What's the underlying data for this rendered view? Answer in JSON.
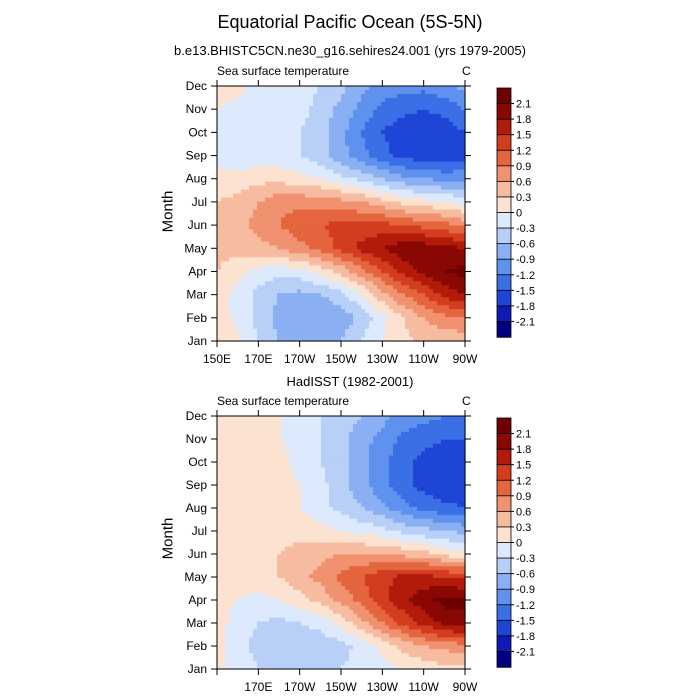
{
  "title": "Equatorial Pacific Ocean (5S-5N)",
  "subtitle": "b.e13.BHISTC5CN.ne30_g16.sehires24.001 (yrs 1979-2005)",
  "chart_data": [
    {
      "type": "heatmap",
      "panel_title": "",
      "left_string": "Sea surface temperature",
      "right_string": "C",
      "ylabel": "Month",
      "x_ticks": [
        "150E",
        "170E",
        "170W",
        "150W",
        "130W",
        "110W",
        "90W"
      ],
      "y_ticks": [
        "Jan",
        "Feb",
        "Mar",
        "Apr",
        "May",
        "Jun",
        "Jul",
        "Aug",
        "Sep",
        "Oct",
        "Nov",
        "Dec"
      ],
      "xlim": [
        "150E",
        "90W"
      ],
      "colorbar_labels": [
        "2.1",
        "1.8",
        "1.5",
        "1.2",
        "0.9",
        "0.6",
        "0.3",
        "0",
        "-0.3",
        "-0.6",
        "-0.9",
        "-1.2",
        "-1.5",
        "-1.8",
        "-2.1"
      ],
      "levels": [
        -2.1,
        -1.8,
        -1.5,
        -1.2,
        -0.9,
        -0.6,
        -0.3,
        0,
        0.3,
        0.6,
        0.9,
        1.2,
        1.5,
        1.8,
        2.1
      ],
      "longitudes_deg_east": [
        150,
        160,
        170,
        180,
        190,
        200,
        210,
        220,
        230,
        240,
        250,
        260,
        270
      ],
      "values": [
        [
          0.3,
          0.1,
          -0.3,
          -0.6,
          -0.7,
          -0.7,
          -0.6,
          -0.3,
          0.0,
          0.2,
          0.4,
          0.4,
          0.4
        ],
        [
          0.2,
          -0.1,
          -0.4,
          -0.7,
          -0.8,
          -0.9,
          -0.8,
          -0.5,
          -0.1,
          0.3,
          0.6,
          0.8,
          0.9
        ],
        [
          0.2,
          -0.1,
          -0.4,
          -0.6,
          -0.7,
          -0.6,
          -0.4,
          0.0,
          0.5,
          0.9,
          1.2,
          1.6,
          1.8
        ],
        [
          0.3,
          0.1,
          -0.1,
          -0.2,
          -0.1,
          0.1,
          0.4,
          0.8,
          1.2,
          1.6,
          1.9,
          2.1,
          2.2
        ],
        [
          0.4,
          0.4,
          0.5,
          0.6,
          0.8,
          1.0,
          1.3,
          1.6,
          1.8,
          2.0,
          2.0,
          1.9,
          1.8
        ],
        [
          0.4,
          0.5,
          0.7,
          0.9,
          1.1,
          1.2,
          1.3,
          1.3,
          1.3,
          1.2,
          1.1,
          1.0,
          0.8
        ],
        [
          0.3,
          0.4,
          0.6,
          0.8,
          0.8,
          0.8,
          0.7,
          0.6,
          0.4,
          0.2,
          0.1,
          0.0,
          -0.1
        ],
        [
          0.1,
          0.1,
          0.2,
          0.2,
          0.1,
          0.0,
          -0.2,
          -0.4,
          -0.6,
          -0.8,
          -0.9,
          -1.0,
          -1.0
        ],
        [
          -0.1,
          -0.2,
          -0.2,
          -0.2,
          -0.3,
          -0.5,
          -0.8,
          -1.1,
          -1.4,
          -1.6,
          -1.7,
          -1.7,
          -1.6
        ],
        [
          -0.1,
          -0.2,
          -0.2,
          -0.2,
          -0.3,
          -0.5,
          -0.8,
          -1.2,
          -1.5,
          -1.7,
          -1.7,
          -1.7,
          -1.5
        ],
        [
          0.0,
          -0.1,
          -0.2,
          -0.2,
          -0.2,
          -0.4,
          -0.7,
          -1.0,
          -1.3,
          -1.4,
          -1.5,
          -1.4,
          -1.2
        ],
        [
          0.2,
          0.1,
          -0.1,
          -0.2,
          -0.2,
          -0.3,
          -0.5,
          -0.8,
          -1.0,
          -1.1,
          -1.1,
          -1.0,
          -0.8
        ]
      ]
    },
    {
      "type": "heatmap",
      "panel_title": "HadISST (1982-2001)",
      "left_string": "Sea surface temperature",
      "right_string": "C",
      "ylabel": "Month",
      "x_ticks": [
        "",
        "170E",
        "170W",
        "150W",
        "130W",
        "110W",
        "90W"
      ],
      "y_ticks": [
        "Jan",
        "Feb",
        "Mar",
        "Apr",
        "May",
        "Jun",
        "Jul",
        "Aug",
        "Sep",
        "Oct",
        "Nov",
        "Dec"
      ],
      "xlim": [
        "150E",
        "90W"
      ],
      "colorbar_labels": [
        "2.1",
        "1.8",
        "1.5",
        "1.2",
        "0.9",
        "0.6",
        "0.3",
        "0",
        "-0.3",
        "-0.6",
        "-0.9",
        "-1.2",
        "-1.5",
        "-1.8",
        "-2.1"
      ],
      "levels": [
        -2.1,
        -1.8,
        -1.5,
        -1.2,
        -0.9,
        -0.6,
        -0.3,
        0,
        0.3,
        0.6,
        0.9,
        1.2,
        1.5,
        1.8,
        2.1
      ],
      "longitudes_deg_east": [
        150,
        160,
        170,
        180,
        190,
        200,
        210,
        220,
        230,
        240,
        250,
        260,
        270
      ],
      "values": [
        [
          0.1,
          -0.1,
          -0.3,
          -0.4,
          -0.4,
          -0.4,
          -0.3,
          -0.2,
          -0.1,
          0.0,
          0.1,
          0.2,
          0.2
        ],
        [
          0.1,
          -0.2,
          -0.4,
          -0.5,
          -0.5,
          -0.5,
          -0.4,
          -0.2,
          0.1,
          0.4,
          0.6,
          0.7,
          0.8
        ],
        [
          0.1,
          -0.1,
          -0.3,
          -0.4,
          -0.3,
          -0.2,
          0.1,
          0.5,
          0.9,
          1.3,
          1.6,
          1.9,
          2.0
        ],
        [
          0.1,
          0.0,
          -0.1,
          0.0,
          0.2,
          0.4,
          0.7,
          1.0,
          1.4,
          1.7,
          2.0,
          2.2,
          2.2
        ],
        [
          0.1,
          0.1,
          0.2,
          0.3,
          0.5,
          0.7,
          1.0,
          1.2,
          1.4,
          1.6,
          1.6,
          1.5,
          1.4
        ],
        [
          0.1,
          0.1,
          0.2,
          0.3,
          0.4,
          0.5,
          0.6,
          0.6,
          0.6,
          0.5,
          0.4,
          0.2,
          0.1
        ],
        [
          0.1,
          0.1,
          0.1,
          0.2,
          0.2,
          0.1,
          0.0,
          -0.1,
          -0.2,
          -0.4,
          -0.5,
          -0.6,
          -0.7
        ],
        [
          0.0,
          0.1,
          0.1,
          0.1,
          0.0,
          -0.2,
          -0.4,
          -0.6,
          -0.8,
          -1.1,
          -1.3,
          -1.4,
          -1.5
        ],
        [
          0.0,
          0.1,
          0.2,
          0.1,
          0.0,
          -0.2,
          -0.5,
          -0.8,
          -1.1,
          -1.4,
          -1.6,
          -1.8,
          -1.8
        ],
        [
          0.1,
          0.1,
          0.1,
          0.1,
          -0.1,
          -0.3,
          -0.5,
          -0.8,
          -1.1,
          -1.4,
          -1.6,
          -1.7,
          -1.7
        ],
        [
          0.1,
          0.1,
          0.1,
          0.0,
          -0.1,
          -0.3,
          -0.5,
          -0.8,
          -1.0,
          -1.3,
          -1.4,
          -1.5,
          -1.5
        ],
        [
          0.1,
          0.1,
          0.1,
          0.0,
          -0.1,
          -0.3,
          -0.4,
          -0.6,
          -0.8,
          -1.0,
          -1.1,
          -1.2,
          -1.2
        ]
      ]
    }
  ],
  "palette": [
    "#00007f",
    "#0d1ab5",
    "#1f45d6",
    "#3a6fe6",
    "#5f92ee",
    "#8ab0f3",
    "#b8d0f8",
    "#dde9fc",
    "#fbe2d1",
    "#f7bca0",
    "#f09270",
    "#e5653f",
    "#d23c1f",
    "#b21a0a",
    "#8a0804",
    "#6e0000"
  ]
}
